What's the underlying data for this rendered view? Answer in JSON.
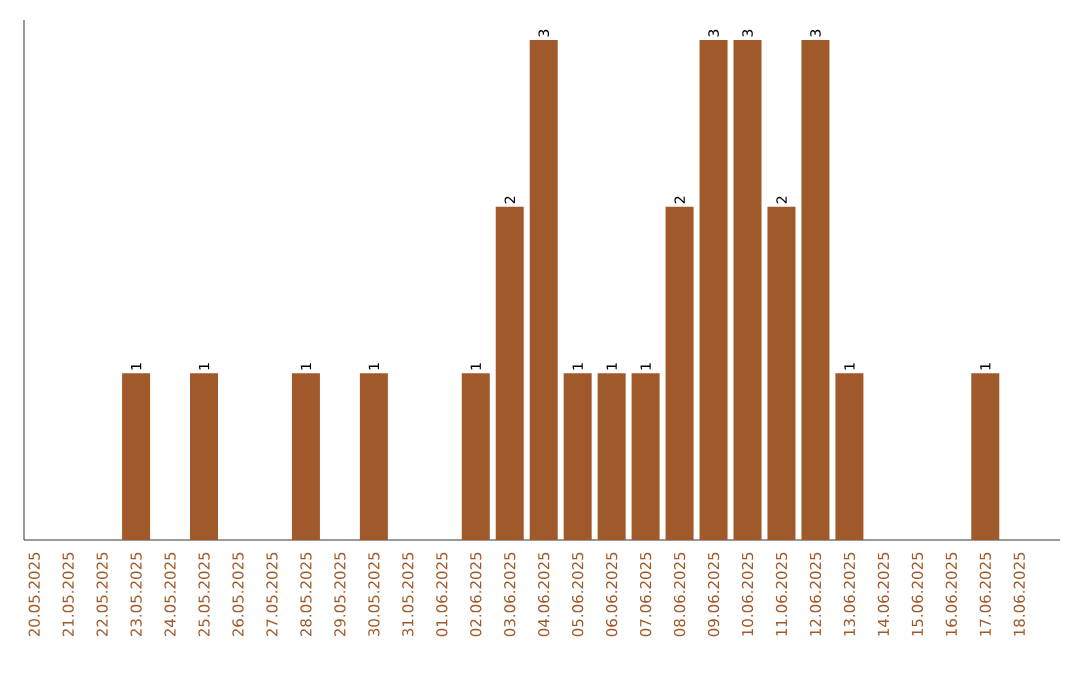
{
  "chart_data": {
    "type": "bar",
    "categories": [
      "20.05.2025",
      "21.05.2025",
      "22.05.2025",
      "23.05.2025",
      "24.05.2025",
      "25.05.2025",
      "26.05.2025",
      "27.05.2025",
      "28.05.2025",
      "29.05.2025",
      "30.05.2025",
      "31.05.2025",
      "01.06.2025",
      "02.06.2025",
      "03.06.2025",
      "04.06.2025",
      "05.06.2025",
      "06.06.2025",
      "07.06.2025",
      "08.06.2025",
      "09.06.2025",
      "10.06.2025",
      "11.06.2025",
      "12.06.2025",
      "13.06.2025",
      "14.06.2025",
      "15.06.2025",
      "16.06.2025",
      "17.06.2025",
      "18.06.2025"
    ],
    "values": [
      0,
      0,
      0,
      1,
      0,
      1,
      0,
      0,
      1,
      0,
      1,
      0,
      0,
      1,
      2,
      3,
      1,
      1,
      1,
      2,
      3,
      3,
      2,
      3,
      1,
      0,
      0,
      0,
      1,
      0
    ],
    "value_labels": [
      null,
      null,
      null,
      "1",
      null,
      "1",
      null,
      null,
      "1",
      null,
      "1",
      null,
      null,
      "1",
      "2",
      "3",
      "1",
      "1",
      "1",
      "2",
      "3",
      "3",
      "2",
      "3",
      "1",
      null,
      null,
      null,
      "1",
      null
    ],
    "color": "#a0592a"
  }
}
